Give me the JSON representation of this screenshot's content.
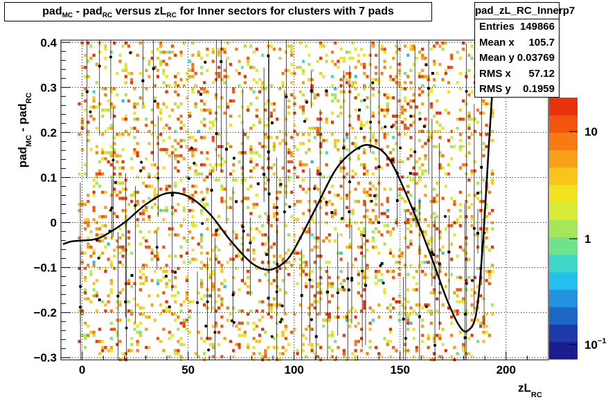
{
  "title": {
    "parts": [
      {
        "text": "pad",
        "sub": "MC"
      },
      {
        "text": " - pad",
        "sub": "RC"
      },
      {
        "text": " versus zL",
        "sub": "RC"
      },
      {
        "text": " for Inner sectors for clusters with 7 pads",
        "sub": ""
      }
    ]
  },
  "stats": {
    "name": "pad_zL_RC_Innerp7",
    "rows": [
      {
        "label": "Entries",
        "value": "149866"
      },
      {
        "label": "Mean x",
        "value": "105.7"
      },
      {
        "label": "Mean y",
        "value": "0.03769"
      },
      {
        "label": "RMS x",
        "value": "57.12"
      },
      {
        "label": "RMS y",
        "value": "0.1959"
      }
    ]
  },
  "chart_data": {
    "type": "heatmap",
    "title": "pad_MC - pad_RC versus zL_RC for Inner sectors for clusters with 7 pads",
    "xlabel": "zL_RC",
    "ylabel": "pad_MC - pad_RC",
    "xlim": [
      -10,
      220
    ],
    "ylim": [
      -0.305,
      0.405
    ],
    "x_ticks": [
      0,
      50,
      100,
      150,
      200
    ],
    "y_ticks": [
      -0.3,
      -0.2,
      -0.1,
      0,
      0.1,
      0.2,
      0.3,
      0.4
    ],
    "z_scale": "log",
    "z_ticks": [
      "10",
      "1",
      "10^-1"
    ],
    "grid": true,
    "fit_curve": {
      "x": [
        -9,
        -5,
        0,
        5,
        10,
        20,
        30,
        40,
        50,
        60,
        70,
        80,
        88,
        95,
        100,
        110,
        120,
        130,
        137,
        145,
        155,
        165,
        172,
        178,
        182,
        186,
        189,
        192,
        195
      ],
      "y": [
        -0.048,
        -0.042,
        -0.04,
        -0.038,
        -0.03,
        0.0,
        0.04,
        0.065,
        0.058,
        0.02,
        -0.04,
        -0.09,
        -0.105,
        -0.09,
        -0.06,
        0.03,
        0.12,
        0.165,
        0.17,
        0.14,
        0.04,
        -0.08,
        -0.17,
        -0.23,
        -0.24,
        -0.2,
        -0.05,
        0.18,
        0.4
      ]
    }
  },
  "colors": {
    "curve": "#000000",
    "frame": "#000000",
    "palette": [
      "#1c1c8f",
      "#1d3aa8",
      "#1e67c7",
      "#2393df",
      "#26c0ef",
      "#3fd8c8",
      "#6fe28c",
      "#a6e65a",
      "#d7ec36",
      "#f3e31f",
      "#f8c51b",
      "#f9a017",
      "#f77a12",
      "#f1550e",
      "#e8320b"
    ]
  }
}
